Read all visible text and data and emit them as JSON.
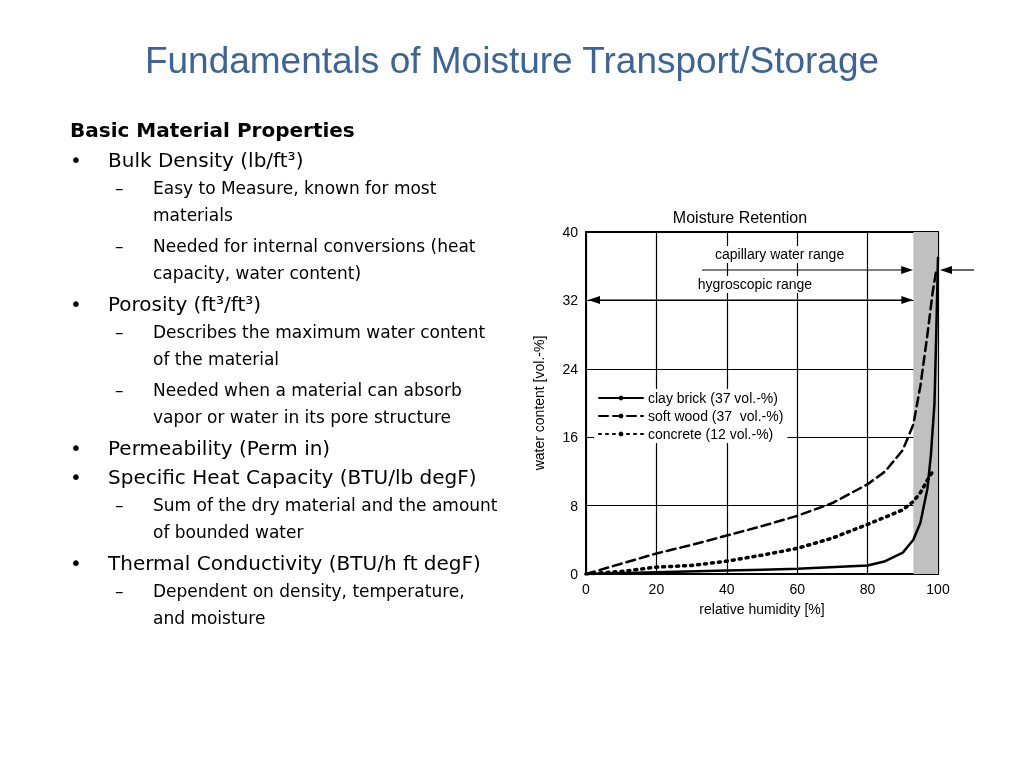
{
  "chart_data": {
    "type": "line",
    "title": "Fundamentals of Moisture Transport/Storage",
    "subtitle": "Moisture Retention",
    "xlabel": "relative humidity [%]",
    "ylabel": "water content [vol.-%]",
    "xlim": [
      0,
      100
    ],
    "ylim": [
      0,
      40
    ],
    "xticks": [
      0,
      20,
      40,
      60,
      80,
      100
    ],
    "yticks": [
      0,
      8,
      16,
      24,
      32,
      40
    ],
    "grid": true,
    "legend": "left",
    "marker": "none",
    "bands": [
      {
        "axis": "x",
        "from": 93,
        "to": 100,
        "color": "#c0c0c0"
      }
    ],
    "series": [
      {
        "name": "clay brick (37 vol.-%)",
        "color": "#000000",
        "line_style": "solid",
        "x": [
          0,
          20,
          40,
          60,
          80,
          85,
          90,
          93,
          95,
          97,
          98,
          99,
          99.5,
          100
        ],
        "values": [
          0,
          0.2,
          0.4,
          0.6,
          1.0,
          1.5,
          2.5,
          4,
          6,
          10,
          14,
          20,
          28,
          37
        ]
      },
      {
        "name": "soft wood (37  vol.-%)",
        "color": "#000000",
        "line_style": "dashed",
        "x": [
          0,
          10,
          20,
          30,
          40,
          50,
          60,
          70,
          80,
          85,
          90,
          93,
          95,
          97,
          98.5,
          99.5
        ],
        "values": [
          0,
          1.2,
          2.4,
          3.4,
          4.5,
          5.6,
          6.8,
          8.3,
          10.5,
          12,
          14.5,
          17.5,
          22,
          28,
          33,
          35.5
        ]
      },
      {
        "name": "concrete (12 vol.-%)",
        "color": "#000000",
        "line_style": "dotted",
        "x": [
          0,
          10,
          20,
          30,
          40,
          50,
          60,
          70,
          80,
          90,
          93,
          95,
          97,
          98.5
        ],
        "values": [
          0,
          0.3,
          0.8,
          1.0,
          1.5,
          2.2,
          3.0,
          4.2,
          5.8,
          7.5,
          8.5,
          9.5,
          11,
          12
        ]
      }
    ],
    "annotations": [
      "capillary water range",
      "hygroscopic range",
      "Basic Material Properties",
      "• Bulk Density (lb/ft³)",
      "– Easy to Measure, known for most materials",
      "– Needed for internal conversions (heat capacity, water content)",
      "• Porosity (ft³/ft³)",
      "– Describes the maximum water content of the material",
      "– Needed when a material can absorb vapor or water in its pore structure",
      "• Permeability (Perm in)",
      "• Specific Heat Capacity (BTU/lb degF)",
      "– Sum of the dry material and the amount of bounded water",
      "• Thermal Conductivity (BTU/h ft degF)",
      "– Dependent on density, temperature, and moisture"
    ]
  }
}
